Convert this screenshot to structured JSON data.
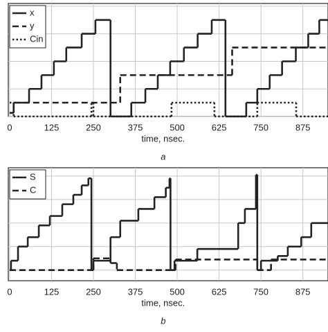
{
  "chart_data": [
    {
      "type": "line",
      "xlabel": "time, nsec.",
      "caption": "a",
      "drawstyle": "steps-post",
      "grid": true,
      "xlim": [
        -4,
        950
      ],
      "xticks": [
        0,
        125,
        250,
        375,
        500,
        625,
        750,
        875
      ],
      "ylim": [
        0,
        4.1
      ],
      "yticks": [
        0,
        1,
        2,
        3,
        4
      ],
      "legend": "upper left",
      "series": [
        {
          "name": "x",
          "color": "#222222",
          "dash": "solid",
          "x": [
            0,
            12,
            58,
            95,
            132,
            169,
            215,
            256,
            301,
            363,
            405,
            442,
            479,
            520,
            561,
            603,
            644,
            706,
            739,
            776,
            813,
            854,
            891,
            924,
            950
          ],
          "values": [
            0.13,
            0.5,
            1,
            1.5,
            2,
            2.5,
            3,
            3.5,
            0,
            0.5,
            1,
            1.5,
            2,
            2.5,
            3,
            3.5,
            0,
            0.5,
            1,
            1.5,
            2,
            2.5,
            3,
            3.5,
            3.5
          ]
        },
        {
          "name": "y",
          "color": "#222222",
          "dash": "dashed",
          "x": [
            0,
            12,
            330,
            664,
            950
          ],
          "values": [
            0.13,
            0.5,
            1.5,
            2.5,
            2.5
          ]
        },
        {
          "name": "Cin",
          "color": "#222222",
          "dash": "dotted",
          "x": [
            0,
            12,
            244,
            250,
            483,
            611,
            739,
            855,
            950
          ],
          "values": [
            0.5,
            0,
            0.5,
            0,
            0.5,
            0,
            0.5,
            0,
            0
          ]
        }
      ]
    },
    {
      "type": "line",
      "xlabel": "time, nsec.",
      "caption": "b",
      "drawstyle": "steps-post",
      "grid": true,
      "xlim": [
        -4,
        950
      ],
      "xticks": [
        0,
        125,
        250,
        375,
        500,
        625,
        750,
        875
      ],
      "ylim": [
        -0.45,
        4.35
      ],
      "yticks": [
        0,
        1,
        2,
        3,
        4
      ],
      "legend": "upper left",
      "series": [
        {
          "name": "S",
          "color": "#222222",
          "dash": "solid",
          "x": [
            0,
            4,
            25,
            54,
            87,
            120,
            157,
            190,
            215,
            235,
            244,
            250,
            301,
            330,
            384,
            432,
            466,
            477,
            480,
            492,
            560,
            682,
            702,
            735,
            739,
            750,
            800,
            830,
            870,
            900,
            950
          ],
          "values": [
            0,
            0.4,
            1,
            1.4,
            1.9,
            2.3,
            2.8,
            3.2,
            3.6,
            3.9,
            0,
            0.4,
            1.4,
            2.1,
            2.6,
            3.1,
            3.5,
            3.9,
            0,
            0.4,
            0.9,
            2,
            2.6,
            4.05,
            0,
            0.4,
            0.6,
            1,
            1.4,
            2,
            2
          ]
        },
        {
          "name": "C",
          "color": "#222222",
          "dash": "dashed",
          "x": [
            0,
            244,
            250,
            301,
            320,
            480,
            495,
            739,
            780,
            950
          ],
          "values": [
            0,
            0,
            0.5,
            0.3,
            0,
            0,
            0.45,
            0,
            0.45,
            0.45
          ]
        }
      ]
    }
  ]
}
